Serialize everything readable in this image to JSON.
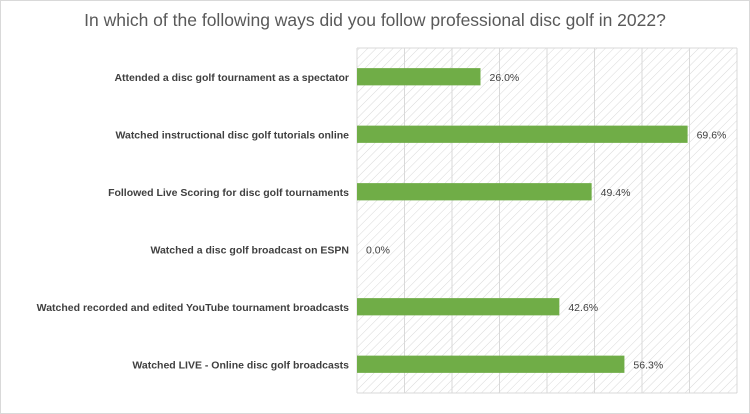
{
  "chart_data": {
    "type": "bar",
    "orientation": "horizontal",
    "title": "In which of the following ways did you follow professional disc golf in 2022?",
    "categories": [
      "Attended a disc golf tournament as a spectator",
      "Watched instructional disc golf tutorials online",
      "Followed Live Scoring for disc golf tournaments",
      "Watched a disc golf broadcast on ESPN",
      "Watched recorded and edited YouTube tournament broadcasts",
      "Watched LIVE - Online disc golf broadcasts"
    ],
    "values": [
      26.0,
      69.6,
      49.4,
      0.0,
      42.6,
      56.3
    ],
    "value_labels": [
      "26.0%",
      "69.6%",
      "49.4%",
      "0.0%",
      "42.6%",
      "56.3%"
    ],
    "xlim": [
      0,
      80
    ],
    "grid": true,
    "plot_background": "hatched",
    "colors": {
      "bar": "#70ad47",
      "grid": "#d9d9d9",
      "hatch": "#d9d9d9",
      "text": "#404040",
      "title": "#595959"
    }
  }
}
